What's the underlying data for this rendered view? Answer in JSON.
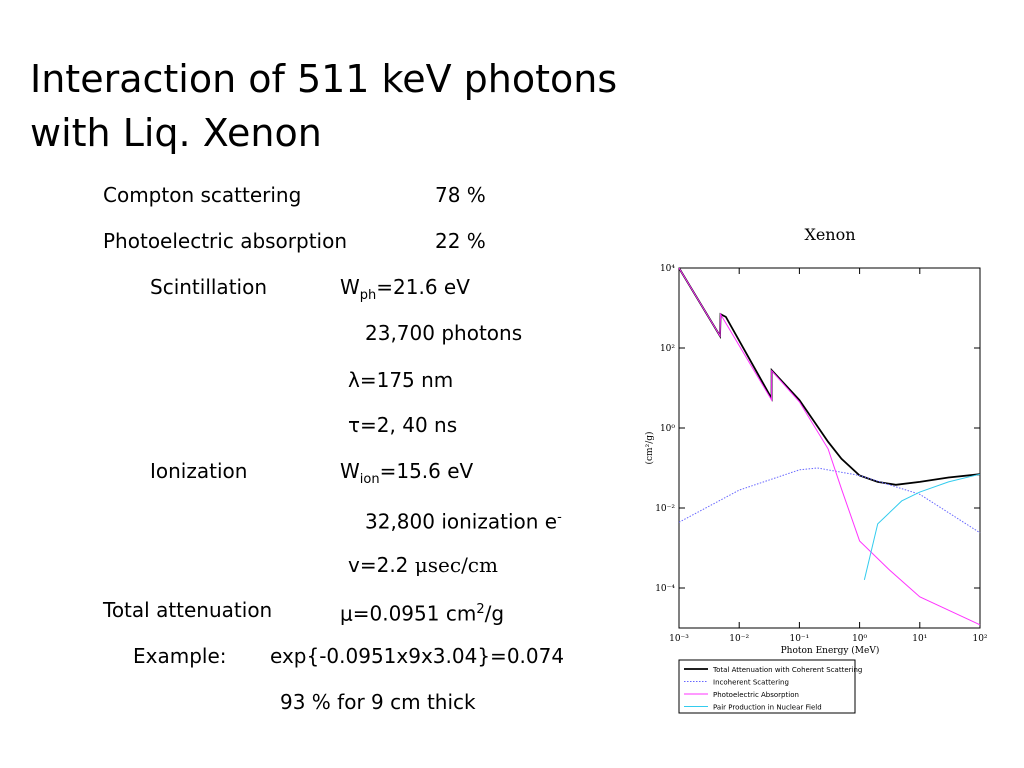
{
  "title": [
    "Interaction of 511 keV photons",
    "with Liq. Xenon"
  ],
  "rows": [
    [
      "Compton scattering",
      "78 %"
    ],
    [
      "Photoelectric absorption",
      "22 %"
    ],
    [
      "Scintillation",
      {
        "parts": [
          {
            "t": "W"
          },
          {
            "sub": "ph"
          },
          {
            "t": "=21.6 eV"
          }
        ]
      }
    ],
    [
      "23,700 photons"
    ],
    [
      "λ=175 nm"
    ],
    [
      "τ=2, 40 ns"
    ],
    [
      "Ionization",
      {
        "parts": [
          {
            "t": "W"
          },
          {
            "sub": "ion"
          },
          {
            "t": "=15.6 eV"
          }
        ]
      }
    ],
    [
      {
        "parts": [
          {
            "t": "32,800 ionization e"
          },
          {
            "sup": "-"
          }
        ]
      }
    ],
    [
      {
        "parts": [
          {
            "t": "v=2.2 "
          },
          {
            "serif": "μsec/cm"
          }
        ]
      }
    ],
    [
      "Total attenuation",
      {
        "parts": [
          {
            "t": "μ=0.0951 cm"
          },
          {
            "sup": "2"
          },
          {
            "t": "/g"
          }
        ]
      }
    ],
    [
      "Example:",
      "exp{-0.0951x9x3.04}=0.074"
    ],
    [
      "93 % for 9 cm thick"
    ]
  ],
  "chart_data": {
    "type": "line",
    "title": "Xenon",
    "xlabel": "Photon Energy (MeV)",
    "ylabel": "(cm²/g)",
    "xscale": "log",
    "yscale": "log",
    "legend": "bottom",
    "xlim": [
      0.001,
      100
    ],
    "ylim": [
      1e-05,
      10000
    ],
    "xticks": [
      {
        "value": 0.001,
        "label": "10⁻³"
      },
      {
        "value": 0.01,
        "label": "10⁻²"
      },
      {
        "value": 0.1,
        "label": "10⁻¹"
      },
      {
        "value": 1,
        "label": "10⁰"
      },
      {
        "value": 10,
        "label": "10¹"
      },
      {
        "value": 100,
        "label": "10²"
      }
    ],
    "yticks": [
      {
        "value": 10000,
        "label": "10⁴"
      },
      {
        "value": 100,
        "label": "10²"
      },
      {
        "value": 1,
        "label": "10⁰"
      },
      {
        "value": 0.01,
        "label": "10⁻²"
      },
      {
        "value": 0.0001,
        "label": "10⁻⁴"
      }
    ],
    "series": [
      {
        "name": "Total Attenuation with Coherent Scattering",
        "color": "#000000",
        "style": "solid",
        "x": [
          0.001,
          0.0048,
          0.0049,
          0.006,
          0.0345,
          0.0346,
          0.1,
          0.3,
          0.5,
          1,
          2,
          4,
          10,
          30,
          100
        ],
        "values": [
          10000,
          200,
          700,
          600,
          5.5,
          28,
          5,
          0.45,
          0.17,
          0.065,
          0.045,
          0.038,
          0.045,
          0.058,
          0.07
        ]
      },
      {
        "name": "Incoherent Scattering",
        "color": "#6666ff",
        "style": "dotted",
        "x": [
          0.001,
          0.01,
          0.1,
          0.2,
          1,
          10,
          100
        ],
        "values": [
          0.0044,
          0.028,
          0.09,
          0.1,
          0.065,
          0.022,
          0.0024
        ]
      },
      {
        "name": "Photoelectric Absorption",
        "color": "#ff33ff",
        "style": "solid",
        "x": [
          0.001,
          0.0048,
          0.0049,
          0.0345,
          0.0346,
          0.1,
          0.3,
          0.5,
          1,
          3,
          10,
          100
        ],
        "values": [
          10000,
          200,
          700,
          5,
          27,
          4.5,
          0.3,
          0.03,
          0.0015,
          0.0003,
          6e-05,
          1.2e-05
        ]
      },
      {
        "name": "Pair Production in Nuclear Field",
        "color": "#33ccee",
        "style": "solid",
        "x": [
          1.2,
          2,
          5,
          10,
          30,
          100
        ],
        "values": [
          0.00016,
          0.004,
          0.015,
          0.025,
          0.045,
          0.07
        ]
      }
    ]
  }
}
